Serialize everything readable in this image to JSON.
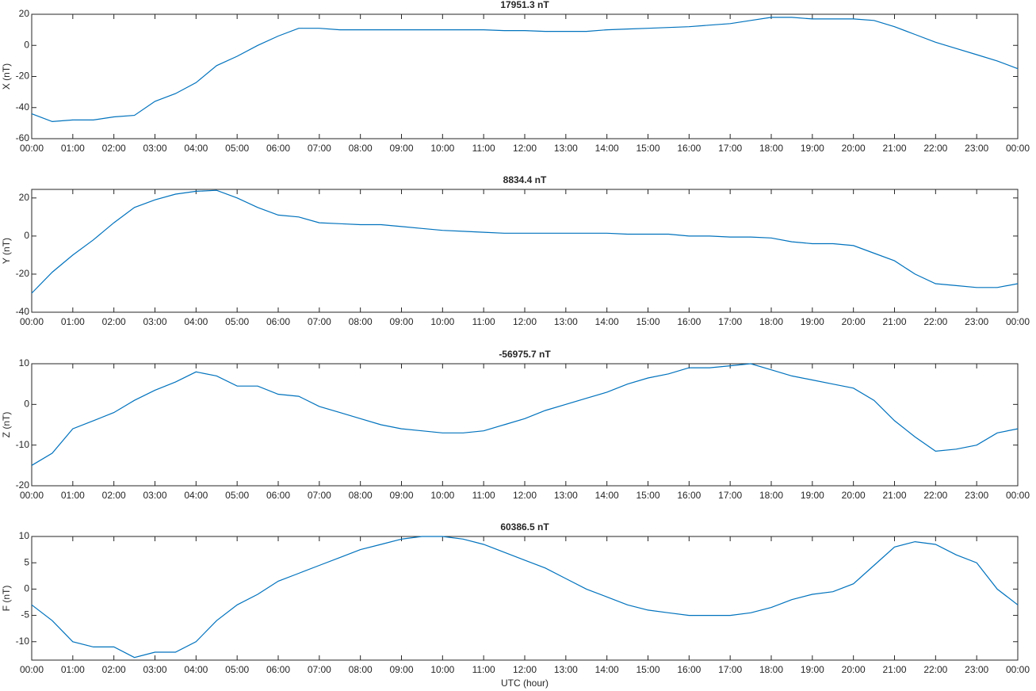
{
  "chart_data": [
    {
      "type": "line",
      "title": "17951.3 nT",
      "ylabel": "X (nT)",
      "color": "#0072bd",
      "grid": false,
      "x": [
        0,
        0.5,
        1,
        1.5,
        2,
        2.5,
        3,
        3.5,
        4,
        4.5,
        5,
        5.5,
        6,
        6.5,
        7,
        7.5,
        8,
        8.5,
        9,
        9.5,
        10,
        10.5,
        11,
        11.5,
        12,
        12.5,
        13,
        13.5,
        14,
        14.5,
        15,
        15.5,
        16,
        16.5,
        17,
        17.5,
        18,
        18.5,
        19,
        19.5,
        20,
        20.5,
        21,
        21.5,
        22,
        22.5,
        23,
        23.5,
        24
      ],
      "values": [
        -44,
        -49,
        -48,
        -48,
        -46,
        -45,
        -36,
        -31,
        -24,
        -13,
        -7,
        0,
        6,
        11,
        11,
        10,
        10,
        10,
        10,
        10,
        10,
        10,
        10,
        9.5,
        9.5,
        9,
        9,
        9,
        10,
        10.5,
        11,
        11.5,
        12,
        13,
        14,
        16,
        18,
        18,
        17,
        17,
        17,
        16,
        12,
        7,
        2,
        -2,
        -6,
        -10,
        -15
      ],
      "xlim": [
        0,
        24
      ],
      "ylim": [
        -60,
        20
      ],
      "yticks": [
        -60,
        -40,
        -20,
        0,
        20
      ],
      "xticks": [
        {
          "value": 0,
          "label": "00:00"
        },
        {
          "value": 1,
          "label": "01:00"
        },
        {
          "value": 2,
          "label": "02:00"
        },
        {
          "value": 3,
          "label": "03:00"
        },
        {
          "value": 4,
          "label": "04:00"
        },
        {
          "value": 5,
          "label": "05:00"
        },
        {
          "value": 6,
          "label": "06:00"
        },
        {
          "value": 7,
          "label": "07:00"
        },
        {
          "value": 8,
          "label": "08:00"
        },
        {
          "value": 9,
          "label": "09:00"
        },
        {
          "value": 10,
          "label": "10:00"
        },
        {
          "value": 11,
          "label": "11:00"
        },
        {
          "value": 12,
          "label": "12:00"
        },
        {
          "value": 13,
          "label": "13:00"
        },
        {
          "value": 14,
          "label": "14:00"
        },
        {
          "value": 15,
          "label": "15:00"
        },
        {
          "value": 16,
          "label": "16:00"
        },
        {
          "value": 17,
          "label": "17:00"
        },
        {
          "value": 18,
          "label": "18:00"
        },
        {
          "value": 19,
          "label": "19:00"
        },
        {
          "value": 20,
          "label": "20:00"
        },
        {
          "value": 21,
          "label": "21:00"
        },
        {
          "value": 22,
          "label": "22:00"
        },
        {
          "value": 23,
          "label": "23:00"
        },
        {
          "value": 24,
          "label": "00:00"
        }
      ]
    },
    {
      "type": "line",
      "title": "8834.4 nT",
      "ylabel": "Y (nT)",
      "color": "#0072bd",
      "grid": false,
      "x": [
        0,
        0.5,
        1,
        1.5,
        2,
        2.5,
        3,
        3.5,
        4,
        4.5,
        5,
        5.5,
        6,
        6.5,
        7,
        7.5,
        8,
        8.5,
        9,
        9.5,
        10,
        10.5,
        11,
        11.5,
        12,
        12.5,
        13,
        13.5,
        14,
        14.5,
        15,
        15.5,
        16,
        16.5,
        17,
        17.5,
        18,
        18.5,
        19,
        19.5,
        20,
        20.5,
        21,
        21.5,
        22,
        22.5,
        23,
        23.5,
        24
      ],
      "values": [
        -30,
        -19,
        -10,
        -2,
        7,
        15,
        19,
        22,
        23.5,
        24,
        20,
        15,
        11,
        10,
        7,
        6.5,
        6,
        6,
        5,
        4,
        3,
        2.5,
        2,
        1.5,
        1.5,
        1.5,
        1.5,
        1.5,
        1.5,
        1,
        1,
        1,
        0,
        0,
        -0.5,
        -0.5,
        -1,
        -3,
        -4,
        -4,
        -5,
        -9,
        -13,
        -20,
        -25,
        -26,
        -27,
        -27,
        -25
      ],
      "xlim": [
        0,
        24
      ],
      "ylim": [
        -40,
        24.5
      ],
      "yticks": [
        -40,
        -20,
        0,
        20
      ],
      "xticks": [
        {
          "value": 0,
          "label": "00:00"
        },
        {
          "value": 1,
          "label": "01:00"
        },
        {
          "value": 2,
          "label": "02:00"
        },
        {
          "value": 3,
          "label": "03:00"
        },
        {
          "value": 4,
          "label": "04:00"
        },
        {
          "value": 5,
          "label": "05:00"
        },
        {
          "value": 6,
          "label": "06:00"
        },
        {
          "value": 7,
          "label": "07:00"
        },
        {
          "value": 8,
          "label": "08:00"
        },
        {
          "value": 9,
          "label": "09:00"
        },
        {
          "value": 10,
          "label": "10:00"
        },
        {
          "value": 11,
          "label": "11:00"
        },
        {
          "value": 12,
          "label": "12:00"
        },
        {
          "value": 13,
          "label": "13:00"
        },
        {
          "value": 14,
          "label": "14:00"
        },
        {
          "value": 15,
          "label": "15:00"
        },
        {
          "value": 16,
          "label": "16:00"
        },
        {
          "value": 17,
          "label": "17:00"
        },
        {
          "value": 18,
          "label": "18:00"
        },
        {
          "value": 19,
          "label": "19:00"
        },
        {
          "value": 20,
          "label": "20:00"
        },
        {
          "value": 21,
          "label": "21:00"
        },
        {
          "value": 22,
          "label": "22:00"
        },
        {
          "value": 23,
          "label": "23:00"
        },
        {
          "value": 24,
          "label": "00:00"
        }
      ]
    },
    {
      "type": "line",
      "title": "-56975.7 nT",
      "ylabel": "Z (nT)",
      "color": "#0072bd",
      "grid": false,
      "x": [
        0,
        0.5,
        1,
        1.5,
        2,
        2.5,
        3,
        3.5,
        4,
        4.5,
        5,
        5.5,
        6,
        6.5,
        7,
        7.5,
        8,
        8.5,
        9,
        9.5,
        10,
        10.5,
        11,
        11.5,
        12,
        12.5,
        13,
        13.5,
        14,
        14.5,
        15,
        15.5,
        16,
        16.5,
        17,
        17.5,
        18,
        18.5,
        19,
        19.5,
        20,
        20.5,
        21,
        21.5,
        22,
        22.5,
        23,
        23.5,
        24
      ],
      "values": [
        -15,
        -12,
        -6,
        -4,
        -2,
        1,
        3.5,
        5.5,
        8,
        7,
        4.5,
        4.5,
        2.5,
        2,
        -0.5,
        -2,
        -3.5,
        -5,
        -6,
        -6.5,
        -7,
        -7,
        -6.5,
        -5,
        -3.5,
        -1.5,
        0,
        1.5,
        3,
        5,
        6.5,
        7.5,
        9,
        9,
        9.5,
        10,
        8.5,
        7,
        6,
        5,
        4,
        1,
        -4,
        -8,
        -11.5,
        -11,
        -10,
        -7,
        -6
      ],
      "xlim": [
        0,
        24
      ],
      "ylim": [
        -20,
        10
      ],
      "yticks": [
        -20,
        -10,
        0,
        10
      ],
      "xticks": [
        {
          "value": 0,
          "label": "00:00"
        },
        {
          "value": 1,
          "label": "01:00"
        },
        {
          "value": 2,
          "label": "02:00"
        },
        {
          "value": 3,
          "label": "03:00"
        },
        {
          "value": 4,
          "label": "04:00"
        },
        {
          "value": 5,
          "label": "05:00"
        },
        {
          "value": 6,
          "label": "06:00"
        },
        {
          "value": 7,
          "label": "07:00"
        },
        {
          "value": 8,
          "label": "08:00"
        },
        {
          "value": 9,
          "label": "09:00"
        },
        {
          "value": 10,
          "label": "10:00"
        },
        {
          "value": 11,
          "label": "11:00"
        },
        {
          "value": 12,
          "label": "12:00"
        },
        {
          "value": 13,
          "label": "13:00"
        },
        {
          "value": 14,
          "label": "14:00"
        },
        {
          "value": 15,
          "label": "15:00"
        },
        {
          "value": 16,
          "label": "16:00"
        },
        {
          "value": 17,
          "label": "17:00"
        },
        {
          "value": 18,
          "label": "18:00"
        },
        {
          "value": 19,
          "label": "19:00"
        },
        {
          "value": 20,
          "label": "20:00"
        },
        {
          "value": 21,
          "label": "21:00"
        },
        {
          "value": 22,
          "label": "22:00"
        },
        {
          "value": 23,
          "label": "23:00"
        },
        {
          "value": 24,
          "label": "00:00"
        }
      ]
    },
    {
      "type": "line",
      "title": "60386.5 nT",
      "ylabel": "F (nT)",
      "xlabel": "UTC (hour)",
      "color": "#0072bd",
      "grid": false,
      "x": [
        0,
        0.5,
        1,
        1.5,
        2,
        2.5,
        3,
        3.5,
        4,
        4.5,
        5,
        5.5,
        6,
        6.5,
        7,
        7.5,
        8,
        8.5,
        9,
        9.5,
        10,
        10.5,
        11,
        11.5,
        12,
        12.5,
        13,
        13.5,
        14,
        14.5,
        15,
        15.5,
        16,
        16.5,
        17,
        17.5,
        18,
        18.5,
        19,
        19.5,
        20,
        20.5,
        21,
        21.5,
        22,
        22.5,
        23,
        23.5,
        24
      ],
      "values": [
        -3,
        -6,
        -10,
        -11,
        -11,
        -13,
        -12,
        -12,
        -10,
        -6,
        -3,
        -1,
        1.5,
        3,
        4.5,
        6,
        7.5,
        8.5,
        9.5,
        10,
        10,
        9.5,
        8.5,
        7,
        5.5,
        4,
        2,
        0,
        -1.5,
        -3,
        -4,
        -4.5,
        -5,
        -5,
        -5,
        -4.5,
        -3.5,
        -2,
        -1,
        -0.5,
        1,
        4.5,
        8,
        9,
        8.5,
        6.5,
        5,
        0,
        -3
      ],
      "xlim": [
        0,
        24
      ],
      "ylim": [
        -13.5,
        10
      ],
      "yticks": [
        -10,
        -5,
        0,
        5,
        10
      ],
      "xticks": [
        {
          "value": 0,
          "label": "00:00"
        },
        {
          "value": 1,
          "label": "01:00"
        },
        {
          "value": 2,
          "label": "02:00"
        },
        {
          "value": 3,
          "label": "03:00"
        },
        {
          "value": 4,
          "label": "04:00"
        },
        {
          "value": 5,
          "label": "05:00"
        },
        {
          "value": 6,
          "label": "06:00"
        },
        {
          "value": 7,
          "label": "07:00"
        },
        {
          "value": 8,
          "label": "08:00"
        },
        {
          "value": 9,
          "label": "09:00"
        },
        {
          "value": 10,
          "label": "10:00"
        },
        {
          "value": 11,
          "label": "11:00"
        },
        {
          "value": 12,
          "label": "12:00"
        },
        {
          "value": 13,
          "label": "13:00"
        },
        {
          "value": 14,
          "label": "14:00"
        },
        {
          "value": 15,
          "label": "15:00"
        },
        {
          "value": 16,
          "label": "16:00"
        },
        {
          "value": 17,
          "label": "17:00"
        },
        {
          "value": 18,
          "label": "18:00"
        },
        {
          "value": 19,
          "label": "19:00"
        },
        {
          "value": 20,
          "label": "20:00"
        },
        {
          "value": 21,
          "label": "21:00"
        },
        {
          "value": 22,
          "label": "22:00"
        },
        {
          "value": 23,
          "label": "23:00"
        },
        {
          "value": 24,
          "label": "00:00"
        }
      ]
    }
  ]
}
